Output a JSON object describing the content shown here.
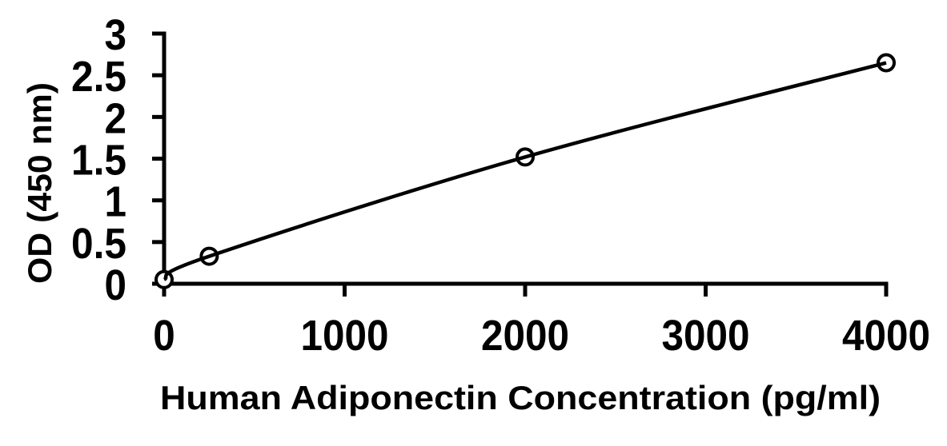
{
  "chart_data": {
    "type": "line",
    "title": "",
    "xlabel": "Human Adiponectin Concentration (pg/ml)",
    "ylabel": "OD (450 nm)",
    "xlim": [
      0,
      4000
    ],
    "ylim": [
      0,
      3
    ],
    "x_tick_labels": [
      "0",
      "1000",
      "2000",
      "3000",
      "4000"
    ],
    "y_tick_labels": [
      "0",
      "0.5",
      "1",
      "1.5",
      "2",
      "2.5",
      "3"
    ],
    "grid": false,
    "legend_position": "none",
    "background_color": "#ffffff",
    "axis_color": "#000000",
    "series": [
      {
        "x": [
          0,
          250,
          2000,
          4000
        ],
        "y": [
          0.05,
          0.33,
          1.52,
          2.65
        ],
        "line_style": "smooth",
        "line_color": "#000000",
        "marker": "open-circle",
        "marker_fill": "#ffffff",
        "marker_stroke": "#000000"
      }
    ]
  }
}
